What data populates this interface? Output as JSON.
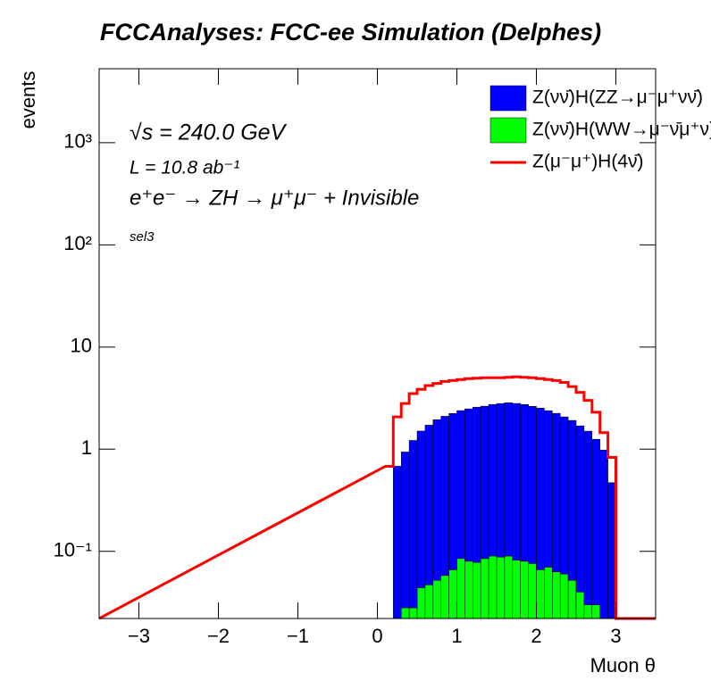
{
  "chart_data": {
    "type": "histogram",
    "title": "FCCAnalyses: FCC-ee Simulation (Delphes)",
    "x_label": "Muon θ",
    "y_label": "events",
    "annotations": [
      "√s = 240.0 GeV",
      "L = 10.8 ab⁻¹",
      "e⁺e⁻ → ZH → μ⁺μ⁻ + Invisible",
      "sel3"
    ],
    "log_y": true,
    "stacked": true,
    "legend": "top-right",
    "bins": [
      0.1,
      0.2,
      0.3,
      0.4,
      0.5,
      0.6,
      0.7,
      0.8,
      0.9,
      1.0,
      1.1,
      1.2,
      1.3,
      1.4,
      1.5,
      1.6,
      1.7,
      1.8,
      1.9,
      2.0,
      2.1,
      2.2,
      2.3,
      2.4,
      2.5,
      2.6,
      2.7,
      2.8,
      2.9,
      3.0
    ],
    "series": [
      {
        "name": "Z(νν̄)H(ZZ→μ⁻μ⁺νν̄)",
        "color": "#0000ff",
        "style": "fill",
        "values": [
          null,
          0.68,
          0.91,
          1.19,
          1.46,
          1.67,
          1.89,
          2.04,
          2.17,
          2.3,
          2.4,
          2.5,
          2.55,
          2.65,
          2.71,
          2.76,
          2.72,
          2.66,
          2.55,
          2.46,
          2.31,
          2.18,
          2.01,
          1.86,
          1.65,
          1.47,
          1.22,
          0.98,
          0.47
        ]
      },
      {
        "name": "Z(νν̄)H(WW→μ⁻ν̄μ⁺ν)",
        "color": "#00ff00",
        "style": "fill",
        "values": [
          null,
          null,
          0.028,
          0.028,
          0.044,
          0.047,
          0.052,
          0.058,
          0.066,
          0.085,
          0.08,
          0.078,
          0.085,
          0.09,
          0.088,
          0.09,
          0.082,
          0.08,
          0.076,
          0.066,
          0.07,
          0.063,
          0.06,
          0.052,
          0.04,
          0.03,
          0.03,
          null,
          null
        ]
      },
      {
        "name": "Z(μ⁻μ⁺)H(4ν̄)",
        "color": "#ff0000",
        "style": "line",
        "values": [
          0.68,
          2.07,
          2.8,
          3.5,
          3.85,
          4.2,
          4.4,
          4.6,
          4.7,
          4.8,
          4.9,
          4.95,
          5.0,
          5.0,
          5.0,
          5.05,
          5.1,
          5.05,
          5.0,
          4.9,
          4.8,
          4.7,
          4.5,
          4.1,
          3.6,
          3.0,
          2.3,
          1.45,
          0.83
        ]
      }
    ],
    "xlim": [
      -3.5,
      3.5
    ],
    "xticks": [
      {
        "value": -3,
        "label": "−3"
      },
      {
        "value": -2,
        "label": "−2"
      },
      {
        "value": -1,
        "label": "−1"
      },
      0,
      1,
      2,
      3
    ],
    "ylim": [
      0.022,
      5300
    ],
    "yticks": [
      {
        "value": 0.1,
        "label": "10⁻¹"
      },
      1,
      10,
      {
        "value": 100,
        "label": "10²"
      },
      {
        "value": 1000,
        "label": "10³"
      }
    ]
  }
}
